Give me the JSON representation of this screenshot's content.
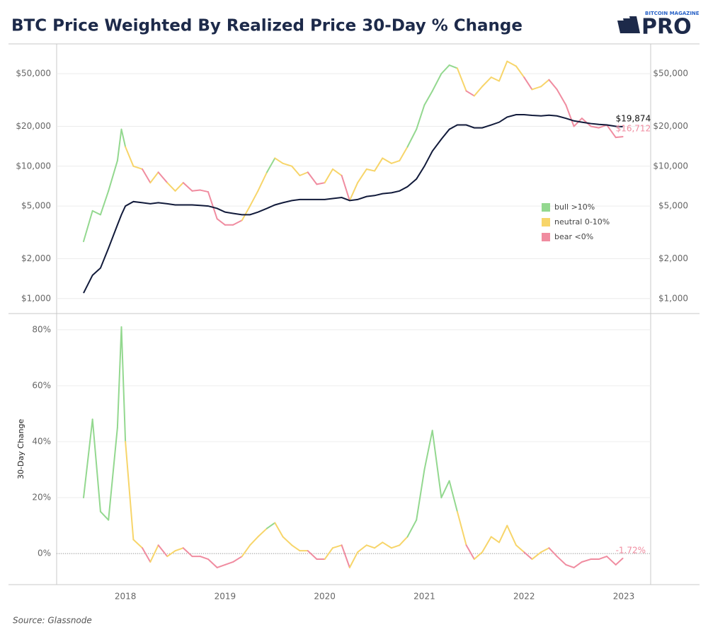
{
  "header": {
    "title": "BTC Price Weighted By Realized Price 30-Day % Change",
    "logo_top": "BITCOIN MAGAZINE",
    "logo_main": "PRO"
  },
  "source": "Source: Glassnode",
  "color_key": {
    "items": [
      {
        "name": "bull >10%",
        "color": "#93d88f"
      },
      {
        "name": "neutral 0-10%",
        "color": "#f7d56a"
      },
      {
        "name": "bear <0%",
        "color": "#f08ca0"
      }
    ],
    "regime": [
      0,
      0,
      0,
      0,
      0,
      0,
      0,
      1,
      1,
      2,
      1,
      2,
      1,
      1,
      2,
      2,
      2,
      2,
      2,
      2,
      2,
      1,
      1,
      1,
      0,
      1,
      1,
      1,
      1,
      2,
      2,
      1,
      1,
      2,
      1,
      1,
      1,
      1,
      1,
      1,
      1,
      0,
      0,
      0,
      0,
      0,
      0,
      1,
      2,
      1,
      1,
      1,
      1,
      1,
      1,
      2,
      1,
      1,
      2,
      2,
      2,
      2,
      2,
      2,
      2,
      2,
      2
    ]
  },
  "chart_data": [
    {
      "type": "line",
      "log_scale": true,
      "grid": true,
      "right_axis": true,
      "legend_position": "right",
      "xlim": [
        2017.31,
        2023.27
      ],
      "ylim": [
        770,
        84000
      ],
      "yticks": [
        {
          "value": 1000,
          "label": "$1,000"
        },
        {
          "value": 2000,
          "label": "$2,000"
        },
        {
          "value": 5000,
          "label": "$5,000"
        },
        {
          "value": 10000,
          "label": "$10,000"
        },
        {
          "value": 20000,
          "label": "$20,000"
        },
        {
          "value": 50000,
          "label": "$50,000"
        }
      ],
      "x": [
        2017.58,
        2017.67,
        2017.75,
        2017.83,
        2017.92,
        2017.96,
        2018.0,
        2018.08,
        2018.17,
        2018.25,
        2018.33,
        2018.42,
        2018.5,
        2018.58,
        2018.67,
        2018.75,
        2018.83,
        2018.92,
        2019.0,
        2019.08,
        2019.17,
        2019.25,
        2019.33,
        2019.42,
        2019.5,
        2019.58,
        2019.67,
        2019.75,
        2019.83,
        2019.92,
        2020.0,
        2020.08,
        2020.17,
        2020.25,
        2020.33,
        2020.42,
        2020.5,
        2020.58,
        2020.67,
        2020.75,
        2020.83,
        2020.92,
        2021.0,
        2021.08,
        2021.17,
        2021.25,
        2021.33,
        2021.42,
        2021.5,
        2021.58,
        2021.67,
        2021.75,
        2021.83,
        2021.92,
        2022.0,
        2022.08,
        2022.17,
        2022.25,
        2022.33,
        2022.42,
        2022.5,
        2022.58,
        2022.67,
        2022.75,
        2022.83,
        2022.92,
        2022.99
      ],
      "series": [
        {
          "color_by_regime": true,
          "values": [
            2700,
            4600,
            4300,
            6500,
            11000,
            19000,
            14000,
            10000,
            9500,
            7500,
            9000,
            7500,
            6500,
            7500,
            6500,
            6600,
            6400,
            4000,
            3600,
            3600,
            3900,
            5000,
            6500,
            9000,
            11500,
            10500,
            10000,
            8500,
            9000,
            7300,
            7500,
            9500,
            8500,
            5500,
            7500,
            9500,
            9200,
            11500,
            10500,
            11000,
            14000,
            19000,
            29000,
            37000,
            50000,
            58000,
            55000,
            37000,
            34000,
            40000,
            47000,
            44000,
            62000,
            57000,
            47000,
            38000,
            40000,
            45000,
            38000,
            29000,
            20000,
            23000,
            20000,
            19500,
            20500,
            16500,
            16712
          ]
        },
        {
          "color": "#111a3a",
          "values": [
            1100,
            1500,
            1700,
            2400,
            3600,
            4300,
            5000,
            5400,
            5300,
            5200,
            5300,
            5200,
            5100,
            5100,
            5100,
            5050,
            5000,
            4800,
            4500,
            4400,
            4300,
            4300,
            4500,
            4800,
            5100,
            5300,
            5500,
            5600,
            5600,
            5600,
            5600,
            5700,
            5800,
            5500,
            5600,
            5900,
            6000,
            6200,
            6300,
            6500,
            7000,
            8000,
            10000,
            13000,
            16000,
            19000,
            20500,
            20500,
            19500,
            19500,
            20500,
            21500,
            23500,
            24500,
            24500,
            24200,
            24000,
            24300,
            24000,
            23000,
            22000,
            21500,
            21000,
            20700,
            20500,
            20000,
            19874
          ]
        }
      ],
      "annotations": [
        {
          "value": 19874,
          "label": "$19,874",
          "color": "#111111"
        },
        {
          "value": 16712,
          "label": "$16,712",
          "color": "#f08ca0"
        }
      ]
    },
    {
      "type": "line",
      "grid": true,
      "zero_line": true,
      "ylabel": "30-Day Change",
      "xlim": [
        2017.31,
        2023.27
      ],
      "xticks": [
        2018,
        2019,
        2020,
        2021,
        2022,
        2023
      ],
      "ylim": [
        -11.1,
        85.8
      ],
      "yticks": [
        {
          "value": 0,
          "label": "0%"
        },
        {
          "value": 20,
          "label": "20%"
        },
        {
          "value": 40,
          "label": "40%"
        },
        {
          "value": 60,
          "label": "60%"
        },
        {
          "value": 80,
          "label": "80%"
        }
      ],
      "x": [
        2017.58,
        2017.67,
        2017.75,
        2017.83,
        2017.92,
        2017.96,
        2018.0,
        2018.08,
        2018.17,
        2018.25,
        2018.33,
        2018.42,
        2018.5,
        2018.58,
        2018.67,
        2018.75,
        2018.83,
        2018.92,
        2019.0,
        2019.08,
        2019.17,
        2019.25,
        2019.33,
        2019.42,
        2019.5,
        2019.58,
        2019.67,
        2019.75,
        2019.83,
        2019.92,
        2020.0,
        2020.08,
        2020.17,
        2020.25,
        2020.33,
        2020.42,
        2020.5,
        2020.58,
        2020.67,
        2020.75,
        2020.83,
        2020.92,
        2021.0,
        2021.08,
        2021.17,
        2021.25,
        2021.33,
        2021.42,
        2021.5,
        2021.58,
        2021.67,
        2021.75,
        2021.83,
        2021.92,
        2022.0,
        2022.08,
        2022.17,
        2022.25,
        2022.33,
        2022.42,
        2022.5,
        2022.58,
        2022.67,
        2022.75,
        2022.83,
        2022.92,
        2022.99
      ],
      "series": [
        {
          "color_by_regime": true,
          "values": [
            20,
            48,
            15,
            12,
            45,
            81,
            40,
            5,
            2,
            -3,
            3,
            -1,
            1,
            2,
            -1,
            -1,
            -2,
            -5,
            -4,
            -3,
            -1,
            3,
            6,
            9,
            11,
            6,
            3,
            1,
            1,
            -2,
            -2,
            2,
            3,
            -5,
            0.5,
            3,
            2,
            4,
            2,
            3,
            6,
            12,
            30,
            44,
            20,
            26,
            15,
            3,
            -2,
            0.5,
            6,
            4,
            10,
            3,
            0.5,
            -2,
            0.5,
            2,
            -1,
            -4,
            -5,
            -3,
            -2,
            -2,
            -1,
            -4,
            -1.72
          ]
        }
      ],
      "annotations": [
        {
          "value": -1.72,
          "label": "-1.72%",
          "color": "#f08ca0"
        }
      ]
    }
  ]
}
